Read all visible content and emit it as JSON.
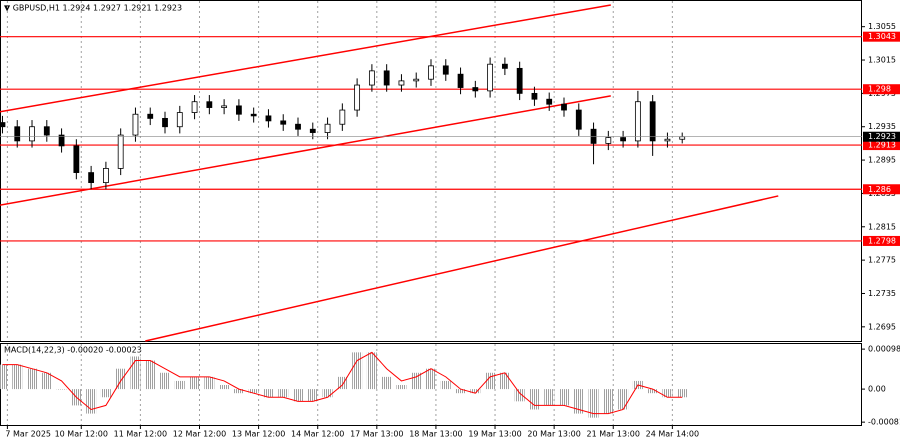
{
  "chart_data": [
    {
      "type": "candlestick",
      "title": "▼ GBPUSD,H1 1.2924 1.2927 1.2921 1.2923",
      "x": [
        1,
        7,
        13,
        19,
        25,
        31,
        37,
        43,
        49,
        55,
        61,
        67,
        73,
        79,
        85,
        91,
        97,
        103,
        109,
        115,
        121,
        127,
        133,
        139,
        145,
        151,
        157,
        163,
        169,
        175,
        181,
        187,
        193,
        199,
        205,
        211,
        217,
        223,
        229,
        235,
        241,
        247,
        253,
        259,
        265,
        271,
        277
      ],
      "open": [
        1.294,
        1.2935,
        1.2918,
        1.2935,
        1.2925,
        1.2912,
        1.288,
        1.2868,
        1.2885,
        1.2925,
        1.295,
        1.2945,
        1.2935,
        1.2952,
        1.2965,
        1.2958,
        1.296,
        1.295,
        1.2948,
        1.2942,
        1.2938,
        1.2932,
        1.2928,
        1.2938,
        1.2955,
        1.2985,
        1.3002,
        1.2985,
        1.299,
        1.2992,
        1.3008,
        1.2998,
        1.2982,
        1.2978,
        1.301,
        1.3005,
        1.2975,
        1.2968,
        1.2962,
        1.2955,
        1.2932,
        1.2915,
        1.2922,
        1.2918,
        1.2965,
        1.2918,
        1.292
      ],
      "high": [
        1.2948,
        1.2943,
        1.2943,
        1.2943,
        1.2933,
        1.292,
        1.2888,
        1.2893,
        1.2933,
        1.2958,
        1.2958,
        1.2953,
        1.296,
        1.2973,
        1.2973,
        1.2968,
        1.2968,
        1.2958,
        1.2956,
        1.295,
        1.2946,
        1.294,
        1.2946,
        1.2963,
        1.2993,
        1.301,
        1.301,
        1.2998,
        1.3,
        1.3016,
        1.3016,
        1.3006,
        1.299,
        1.3018,
        1.3018,
        1.3013,
        1.2983,
        1.2976,
        1.297,
        1.2963,
        1.294,
        1.293,
        1.293,
        1.2978,
        1.2973,
        1.2928,
        1.2928
      ],
      "low": [
        1.2927,
        1.291,
        1.291,
        1.2917,
        1.2904,
        1.2872,
        1.286,
        1.286,
        1.2877,
        1.2917,
        1.2937,
        1.2927,
        1.2927,
        1.2944,
        1.295,
        1.295,
        1.2942,
        1.294,
        1.2934,
        1.293,
        1.2924,
        1.292,
        1.292,
        1.293,
        1.2947,
        1.2977,
        1.2977,
        1.2977,
        1.2982,
        1.2984,
        1.299,
        1.2974,
        1.297,
        1.297,
        1.2997,
        1.2967,
        1.296,
        1.2954,
        1.2947,
        1.2924,
        1.289,
        1.2907,
        1.291,
        1.291,
        1.29,
        1.291,
        1.2915
      ],
      "close": [
        1.2935,
        1.2918,
        1.2935,
        1.2925,
        1.2912,
        1.288,
        1.2868,
        1.2885,
        1.2925,
        1.295,
        1.2945,
        1.2935,
        1.2952,
        1.2965,
        1.2958,
        1.296,
        1.295,
        1.2948,
        1.2942,
        1.2938,
        1.2932,
        1.2928,
        1.2938,
        1.2955,
        1.2985,
        1.3002,
        1.2985,
        1.299,
        1.2992,
        1.3008,
        1.2998,
        1.2982,
        1.2978,
        1.301,
        1.3005,
        1.2975,
        1.2968,
        1.2962,
        1.2955,
        1.2932,
        1.2915,
        1.2922,
        1.2918,
        1.2965,
        1.2918,
        1.292,
        1.2923
      ],
      "xlim": [
        0,
        350
      ],
      "xticks": [
        {
          "value": 3,
          "label": "7 Mar 2025"
        },
        {
          "value": 33,
          "label": "10 Mar 12:00"
        },
        {
          "value": 57,
          "label": "11 Mar 12:00"
        },
        {
          "value": 81,
          "label": "12 Mar 12:00"
        },
        {
          "value": 105,
          "label": "13 Mar 12:00"
        },
        {
          "value": 129,
          "label": "14 Mar 12:00"
        },
        {
          "value": 153,
          "label": "17 Mar 13:00"
        },
        {
          "value": 177,
          "label": "18 Mar 13:00"
        },
        {
          "value": 201,
          "label": "19 Mar 13:00"
        },
        {
          "value": 225,
          "label": "20 Mar 13:00"
        },
        {
          "value": 249,
          "label": "21 Mar 13:00"
        },
        {
          "value": 273,
          "label": "24 Mar 14:00"
        }
      ],
      "ylim": [
        1.2678,
        1.3087
      ],
      "yticks": [
        1.3055,
        1.3015,
        1.2975,
        1.2935,
        1.2895,
        1.2855,
        1.2815,
        1.2775,
        1.2735,
        1.2695
      ],
      "levels": [
        1.3043,
        1.298,
        1.2913,
        1.286,
        1.2798
      ],
      "current_price": 1.2923,
      "level_color": "#ff0000",
      "trend_lines": [
        {
          "x": [
            0,
            248
          ],
          "y": [
            1.2953,
            1.3081
          ]
        },
        {
          "x": [
            0,
            248
          ],
          "y": [
            1.2841,
            1.2972
          ]
        },
        {
          "x": [
            59,
            316
          ],
          "y": [
            1.2678,
            1.2852
          ]
        }
      ],
      "grid": true
    },
    {
      "type": "macd",
      "title": "MACD(14,22,3) -0.00020 -0.00023",
      "x": [
        1,
        7,
        13,
        19,
        25,
        31,
        37,
        43,
        49,
        55,
        61,
        67,
        73,
        79,
        85,
        91,
        97,
        103,
        109,
        115,
        121,
        127,
        133,
        139,
        145,
        151,
        157,
        163,
        169,
        175,
        181,
        187,
        193,
        199,
        205,
        211,
        217,
        223,
        229,
        235,
        241,
        247,
        253,
        259,
        265,
        271,
        277
      ],
      "series": [
        {
          "color": "#a0a0a0",
          "values": [
            0.0006,
            0.0006,
            0.0005,
            0.0004,
            0.0,
            -0.0004,
            -0.0006,
            -0.0002,
            0.0005,
            0.0008,
            0.0007,
            0.0004,
            0.0002,
            0.0003,
            0.0003,
            0.0001,
            -0.0001,
            -0.0001,
            -0.0002,
            -0.0002,
            -0.0003,
            -0.0003,
            -0.0002,
            0.0003,
            0.0009,
            0.0009,
            0.0003,
            0.0001,
            0.0004,
            0.0005,
            0.0002,
            -0.0001,
            -0.0001,
            0.0004,
            0.0004,
            -0.0003,
            -0.0005,
            -0.0004,
            -0.0004,
            -0.0006,
            -0.0007,
            -0.0006,
            -0.0005,
            0.0002,
            -0.0001,
            -0.0002,
            -0.0002
          ]
        },
        {
          "color": "#ff0000",
          "values": [
            0.0006,
            0.0006,
            0.0005,
            0.0004,
            0.0002,
            -0.0002,
            -0.0005,
            -0.0004,
            0.0002,
            0.0007,
            0.0007,
            0.0005,
            0.0003,
            0.0003,
            0.0003,
            0.0002,
            0.0,
            -0.0001,
            -0.0002,
            -0.0002,
            -0.0003,
            -0.0003,
            -0.0002,
            0.0001,
            0.0007,
            0.0009,
            0.0005,
            0.0002,
            0.0003,
            0.0005,
            0.0003,
            0.0,
            -0.0001,
            0.0003,
            0.0004,
            -0.0001,
            -0.0004,
            -0.0004,
            -0.0004,
            -0.0005,
            -0.0006,
            -0.0006,
            -0.0005,
            0.0001,
            0.0,
            -0.0002,
            -0.0002
          ]
        }
      ],
      "ylim": [
        -0.00088,
        0.00113
      ],
      "yticks": [
        0.00098,
        {
          "value": 0,
          "label": "0.00"
        },
        -0.00081
      ]
    }
  ]
}
